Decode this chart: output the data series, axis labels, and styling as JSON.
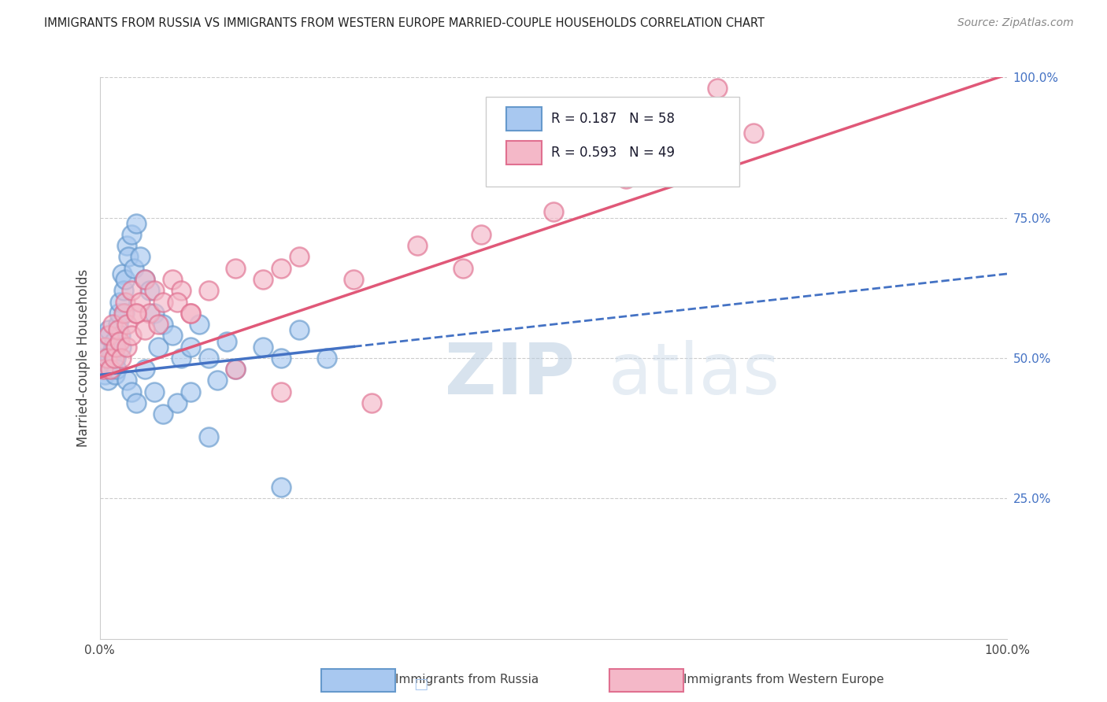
{
  "title": "IMMIGRANTS FROM RUSSIA VS IMMIGRANTS FROM WESTERN EUROPE MARRIED-COUPLE HOUSEHOLDS CORRELATION CHART",
  "source": "Source: ZipAtlas.com",
  "ylabel": "Married-couple Households",
  "xlim": [
    0,
    100
  ],
  "ylim": [
    0,
    100
  ],
  "yticks_right": [
    25,
    50,
    75,
    100
  ],
  "ytick_labels_right": [
    "25.0%",
    "50.0%",
    "75.0%",
    "100.0%"
  ],
  "russia_R": 0.187,
  "russia_N": 58,
  "western_R": 0.593,
  "western_N": 49,
  "russia_color": "#a8c8f0",
  "russia_edge_color": "#6699cc",
  "western_color": "#f4b8c8",
  "western_edge_color": "#e07090",
  "russia_line_color": "#4472c4",
  "western_line_color": "#e05878",
  "background_color": "#ffffff",
  "grid_color": "#cccccc",
  "watermark_zip": "ZIP",
  "watermark_atlas": "atlas",
  "watermark_color_zip": "#c8d8e8",
  "watermark_color_atlas": "#b8c8d8",
  "russia_x": [
    0.3,
    0.5,
    0.6,
    0.7,
    0.8,
    0.9,
    1.0,
    1.1,
    1.2,
    1.3,
    1.4,
    1.5,
    1.6,
    1.7,
    1.8,
    1.9,
    2.0,
    2.1,
    2.2,
    2.3,
    2.4,
    2.5,
    2.6,
    2.7,
    2.8,
    3.0,
    3.2,
    3.5,
    3.8,
    4.0,
    4.5,
    5.0,
    5.5,
    6.0,
    6.5,
    7.0,
    8.0,
    9.0,
    10.0,
    11.0,
    12.0,
    13.0,
    14.0,
    15.0,
    18.0,
    20.0,
    22.0,
    25.0,
    3.0,
    3.5,
    4.0,
    5.0,
    6.0,
    7.0,
    8.5,
    10.0,
    12.0,
    20.0
  ],
  "russia_y": [
    50,
    48,
    47,
    52,
    54,
    46,
    55,
    50,
    48,
    51,
    49,
    52,
    53,
    47,
    50,
    48,
    56,
    58,
    60,
    54,
    52,
    65,
    62,
    58,
    64,
    70,
    68,
    72,
    66,
    74,
    68,
    64,
    62,
    58,
    52,
    56,
    54,
    50,
    52,
    56,
    50,
    46,
    53,
    48,
    52,
    50,
    55,
    50,
    46,
    44,
    42,
    48,
    44,
    40,
    42,
    44,
    36,
    27
  ],
  "western_x": [
    0.4,
    0.6,
    0.8,
    1.0,
    1.2,
    1.4,
    1.6,
    1.8,
    2.0,
    2.2,
    2.4,
    2.6,
    2.8,
    3.0,
    3.5,
    4.0,
    4.5,
    5.0,
    5.5,
    6.0,
    7.0,
    8.0,
    9.0,
    10.0,
    12.0,
    15.0,
    18.0,
    20.0,
    22.0,
    28.0,
    35.0,
    42.0,
    50.0,
    58.0,
    65.0,
    72.0,
    3.0,
    3.5,
    4.0,
    5.0,
    6.5,
    8.5,
    10.0,
    15.0,
    20.0,
    30.0,
    40.0,
    55.0,
    68.0
  ],
  "western_y": [
    48,
    52,
    50,
    54,
    48,
    56,
    50,
    52,
    55,
    53,
    50,
    58,
    60,
    56,
    62,
    58,
    60,
    64,
    58,
    62,
    60,
    64,
    62,
    58,
    62,
    66,
    64,
    66,
    68,
    64,
    70,
    72,
    76,
    82,
    84,
    90,
    52,
    54,
    58,
    55,
    56,
    60,
    58,
    48,
    44,
    42,
    66,
    88,
    98
  ],
  "russia_solid_xmax": 28,
  "western_solid_xmax": 100,
  "russia_intercept": 47.0,
  "russia_slope": 0.18,
  "western_intercept": 46.5,
  "western_slope": 0.54
}
